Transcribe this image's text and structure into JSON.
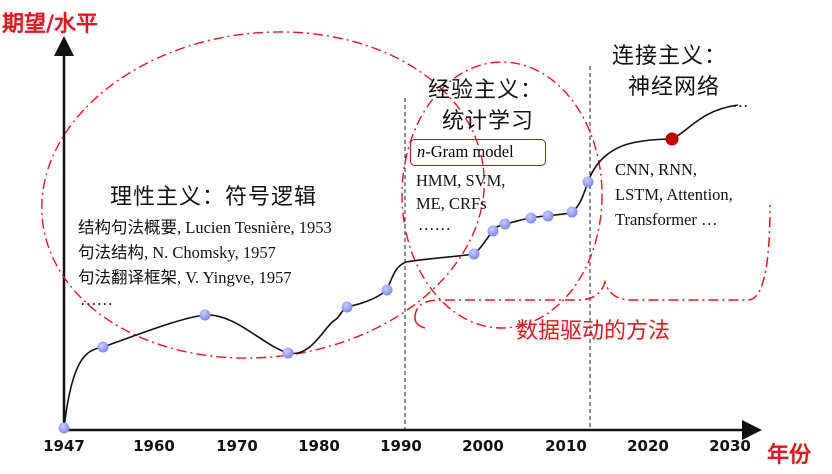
{
  "axis": {
    "y_label": "期望/水平",
    "x_label": "年份",
    "ticks": [
      "1947",
      "1960",
      "1970",
      "1980",
      "1990",
      "2000",
      "2010",
      "2020",
      "2030"
    ]
  },
  "eras": [
    {
      "title": "理性主义：符号逻辑",
      "items": [
        "结构句法概要, Lucien Tesnière, 1953",
        "句法结构, N. Chomsky, 1957",
        "句法翻译框架, V. Yingve, 1957",
        "……"
      ]
    },
    {
      "title_line1": "经验主义：",
      "title_line2": "统计学习",
      "highlight_prefix": "n",
      "highlight_rest": "-Gram model",
      "items": [
        "HMM, SVM,",
        "ME, CRFs",
        "……"
      ]
    },
    {
      "title_line1": "连接主义：",
      "title_line2": "神经网络",
      "items": [
        "CNN, RNN,",
        "LSTM, Attention,",
        "Transformer …"
      ],
      "continuation": "…"
    }
  ],
  "data_driven_label": "数据驱动的方法",
  "colors": {
    "accent_red": "#e8151b",
    "dark_red": "#c00000",
    "point_blue": "#8f95ef",
    "curve": "#111111"
  }
}
